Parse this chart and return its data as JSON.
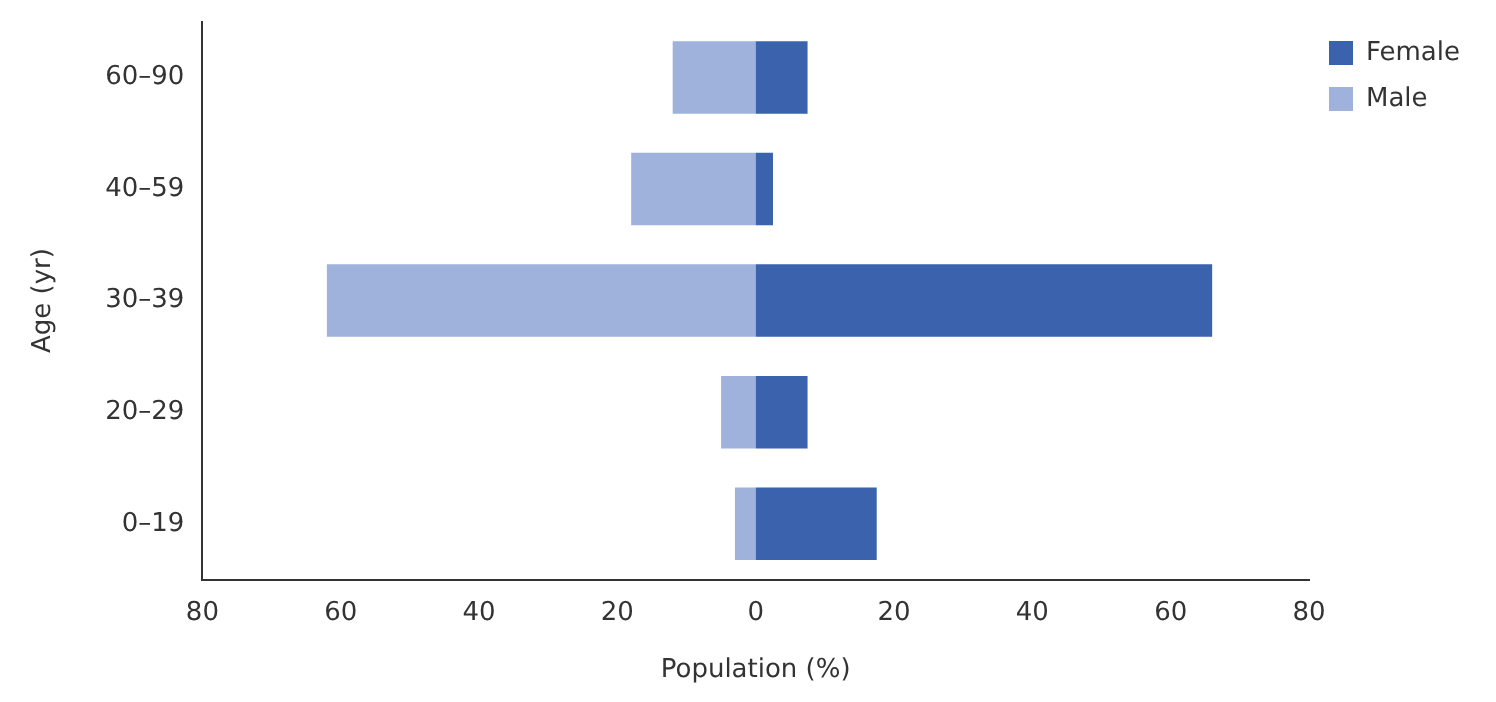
{
  "chart_data": {
    "type": "bar",
    "orientation": "horizontal",
    "stacked": true,
    "xlabel": "Population (%)",
    "ylabel": "Age (yr)",
    "categories": [
      "60–90",
      "40–59",
      "30–39",
      "20–29",
      "0–19"
    ],
    "series": [
      {
        "name": "Female",
        "color": "#3a62ad",
        "values": [
          7.5,
          2.5,
          66,
          7.5,
          17.5
        ]
      },
      {
        "name": "Male",
        "color": "#9fb2db",
        "values": [
          -12,
          -18,
          -62,
          -5,
          -3
        ]
      }
    ],
    "xlim": [
      -80,
      80
    ],
    "xticks": [
      {
        "value": -80,
        "label": "80"
      },
      {
        "value": -60,
        "label": "60"
      },
      {
        "value": -40,
        "label": "40"
      },
      {
        "value": -20,
        "label": "20"
      },
      0,
      20,
      40,
      60,
      80
    ],
    "grid": false,
    "legend": "top right"
  }
}
